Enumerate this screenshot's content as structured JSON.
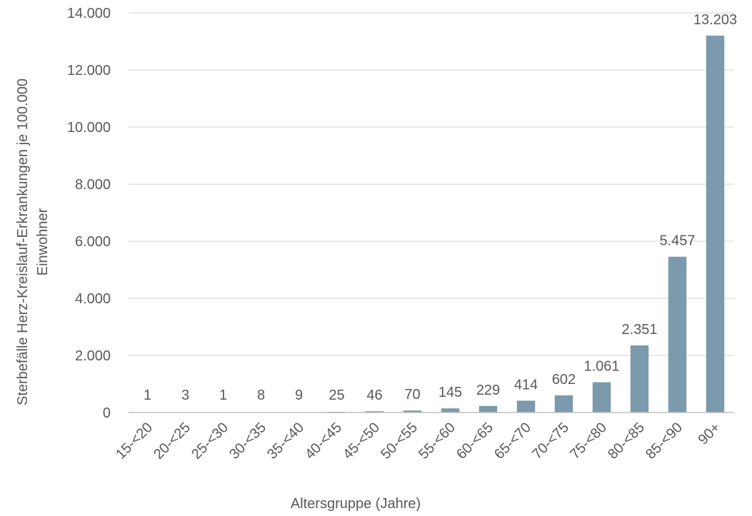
{
  "chart_data": {
    "type": "bar",
    "title": "",
    "xlabel": "Altersgruppe (Jahre)",
    "ylabel_lines": [
      "Sterbefälle Herz-Kreislauf-Erkrankungen je 100.000",
      "Einwohner"
    ],
    "categories": [
      "15-<20",
      "20-<25",
      "25-<30",
      "30-<35",
      "35-<40",
      "40-<45",
      "45-<50",
      "50-<55",
      "55-<60",
      "60-<65",
      "65-<70",
      "70-<75",
      "75-<80",
      "80-<85",
      "85-<90",
      "90+"
    ],
    "values": [
      1,
      3,
      1,
      8,
      9,
      25,
      46,
      70,
      145,
      229,
      414,
      602,
      1061,
      2351,
      5457,
      13203
    ],
    "value_labels": [
      "1",
      "3",
      "1",
      "8",
      "9",
      "25",
      "46",
      "70",
      "145",
      "229",
      "414",
      "602",
      "1.061",
      "2.351",
      "5.457",
      "13.203"
    ],
    "ylim": [
      0,
      14000
    ],
    "yticks": [
      0,
      2000,
      4000,
      6000,
      8000,
      10000,
      12000,
      14000
    ],
    "ytick_labels": [
      "0",
      "2.000",
      "4.000",
      "6.000",
      "8.000",
      "10.000",
      "12.000",
      "14.000"
    ],
    "grid": true,
    "legend": "none",
    "colors": {
      "bar": "#7b9aab",
      "text": "#595959",
      "grid": "#d9d9d9",
      "axis": "#bfbfbf"
    }
  }
}
